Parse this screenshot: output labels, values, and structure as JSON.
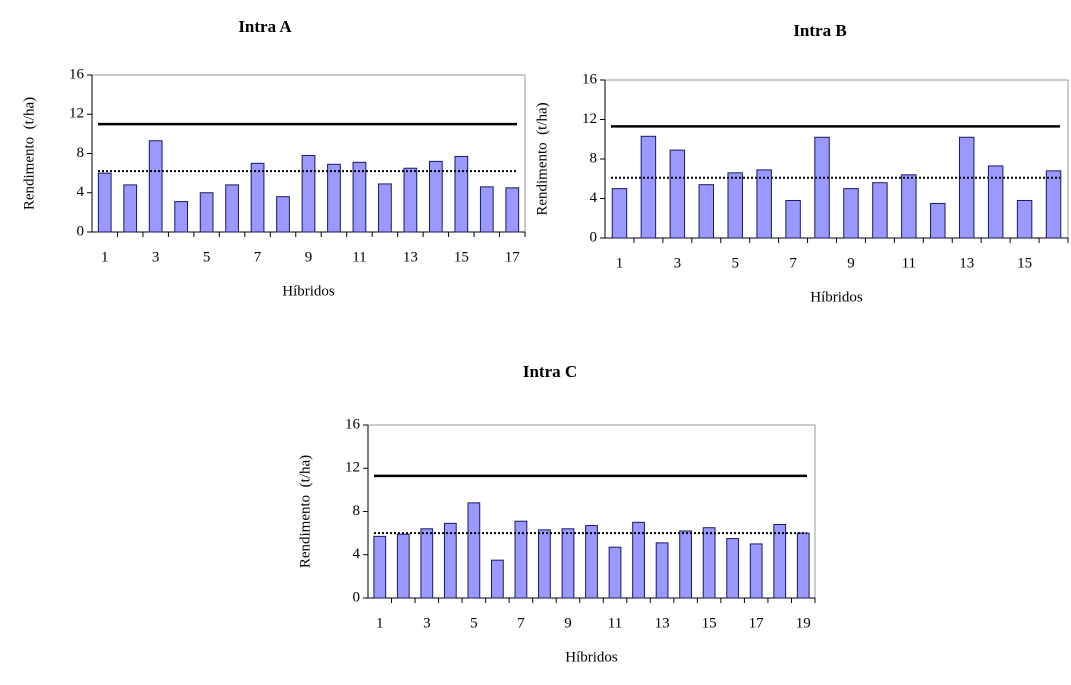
{
  "chart_data": [
    {
      "type": "bar",
      "title": "Intra A",
      "xlabel": "Híbridos",
      "ylabel": "Rendimento  (t/ha)",
      "categories": [
        "1",
        null,
        "3",
        null,
        "5",
        null,
        "7",
        null,
        "9",
        null,
        "11",
        null,
        "13",
        null,
        "15",
        null,
        "17"
      ],
      "values": [
        6.0,
        4.8,
        9.3,
        3.1,
        4.0,
        4.8,
        7.0,
        3.6,
        7.8,
        6.9,
        7.1,
        4.9,
        6.5,
        7.2,
        7.7,
        4.6,
        4.5
      ],
      "color": "#9999ff",
      "ylim": [
        0,
        16
      ],
      "yticks": [
        0,
        4,
        8,
        12,
        16
      ],
      "hlines": [
        {
          "value": 11,
          "style": "solid"
        },
        {
          "value": 6.2,
          "style": "dotted"
        }
      ]
    },
    {
      "type": "bar",
      "title": "Intra B",
      "xlabel": "Híbridos",
      "ylabel": "Rendimento  (t/ha)",
      "categories": [
        "1",
        null,
        "3",
        null,
        "5",
        null,
        "7",
        null,
        "9",
        null,
        "11",
        null,
        "13",
        null,
        "15",
        null
      ],
      "values": [
        5.0,
        10.3,
        8.9,
        5.4,
        6.6,
        6.9,
        3.8,
        10.2,
        5.0,
        5.6,
        6.4,
        3.5,
        10.2,
        7.3,
        3.8,
        6.8
      ],
      "color": "#9999ff",
      "ylim": [
        0,
        16
      ],
      "yticks": [
        0,
        4,
        8,
        12,
        16
      ],
      "hlines": [
        {
          "value": 11.3,
          "style": "solid"
        },
        {
          "value": 6.1,
          "style": "dotted"
        }
      ]
    },
    {
      "type": "bar",
      "title": "Intra C",
      "xlabel": "Híbridos",
      "ylabel": "Rendimento  (t/ha)",
      "categories": [
        "1",
        null,
        "3",
        null,
        "5",
        null,
        "7",
        null,
        "9",
        null,
        "11",
        null,
        "13",
        null,
        "15",
        null,
        "17",
        null,
        "19"
      ],
      "values": [
        5.7,
        5.9,
        6.4,
        6.9,
        8.8,
        3.5,
        7.1,
        6.3,
        6.4,
        6.7,
        4.7,
        7.0,
        5.1,
        6.2,
        6.5,
        5.5,
        5.0,
        6.8,
        6.0
      ],
      "color": "#9999ff",
      "ylim": [
        0,
        16
      ],
      "yticks": [
        0,
        4,
        8,
        12,
        16
      ],
      "hlines": [
        {
          "value": 11.3,
          "style": "solid"
        },
        {
          "value": 6.0,
          "style": "dotted"
        }
      ]
    }
  ]
}
